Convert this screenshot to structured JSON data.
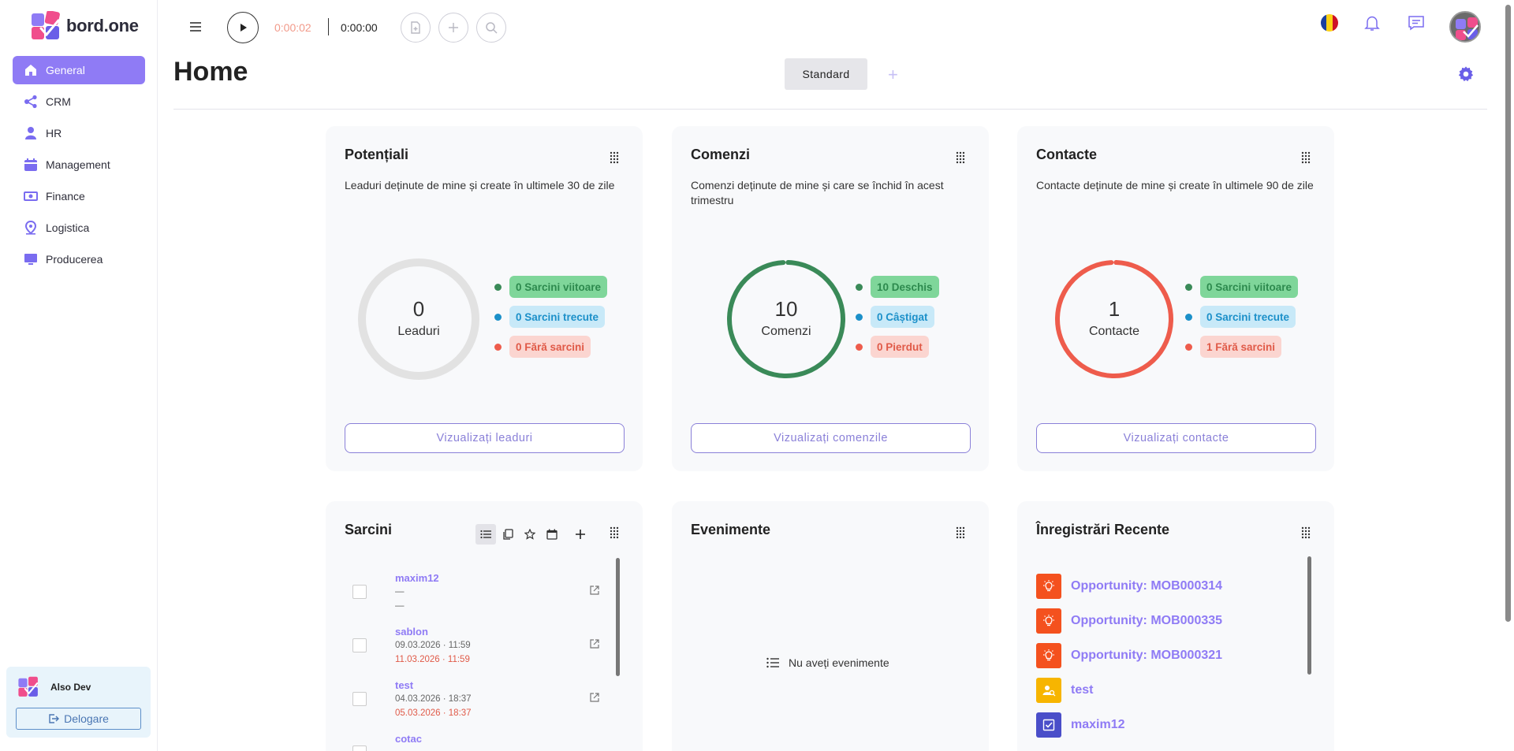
{
  "brand": {
    "name": "bord.one"
  },
  "sidebar": {
    "items": [
      {
        "label": "General",
        "icon": "home-icon",
        "active": true
      },
      {
        "label": "CRM",
        "icon": "share-icon"
      },
      {
        "label": "HR",
        "icon": "person-icon"
      },
      {
        "label": "Management",
        "icon": "calendar-icon"
      },
      {
        "label": "Finance",
        "icon": "money-icon"
      },
      {
        "label": "Logistica",
        "icon": "location-icon"
      },
      {
        "label": "Producerea",
        "icon": "monitor-icon"
      }
    ]
  },
  "user": {
    "name": "Also Dev",
    "logout_label": "Delogare"
  },
  "header": {
    "timer_elapsed": "0:00:02",
    "timer_total": "0:00:00",
    "language_flag": "romania-flag-icon"
  },
  "page": {
    "title": "Home",
    "tab_label": "Standard",
    "add_tab": "+"
  },
  "cards": {
    "potentiali": {
      "title": "Potențiali",
      "description": "Leaduri deținute de mine și create în ultimele 30 de zile",
      "count": "0",
      "count_label": "Leaduri",
      "ring_color": "#e2e2e2",
      "legend": [
        "0 Sarcini viitoare",
        "0 Sarcini trecute",
        "0 Fără sarcini"
      ],
      "button": "Vizualizați leaduri"
    },
    "comenzi": {
      "title": "Comenzi",
      "description": "Comenzi deținute de mine și care se închid în acest trimestru",
      "count": "10",
      "count_label": "Comenzi",
      "ring_color": "#3a8a58",
      "legend": [
        "10 Deschis",
        "0 Câștigat",
        "0 Pierdut"
      ],
      "button": "Vizualizați comenzile"
    },
    "contacte": {
      "title": "Contacte",
      "description": "Contacte deținute de mine și create în ultimele 90 de zile",
      "count": "1",
      "count_label": "Contacte",
      "ring_color": "#ee5c4c",
      "legend": [
        "0 Sarcini viitoare",
        "0 Sarcini trecute",
        "1 Fără sarcini"
      ],
      "button": "Vizualizați contacte"
    },
    "sarcini": {
      "title": "Sarcini",
      "tasks": [
        {
          "name": "maxim12",
          "line1": "—",
          "line2": "—"
        },
        {
          "name": "sablon",
          "line1": "09.03.2026 · 11:59",
          "line2": "11.03.2026 · 11:59"
        },
        {
          "name": "test",
          "line1": "04.03.2026 · 18:37",
          "line2": "05.03.2026 · 18:37"
        },
        {
          "name": "cotac",
          "line1": "",
          "line2": ""
        }
      ]
    },
    "evenimente": {
      "title": "Evenimente",
      "empty_text": "Nu aveți evenimente"
    },
    "inregistrari": {
      "title": "Înregistrări Recente",
      "records": [
        {
          "label": "Opportunity: MOB000314",
          "icon": "lightbulb-icon",
          "color": "#f4511e"
        },
        {
          "label": "Opportunity: MOB000335",
          "icon": "lightbulb-icon",
          "color": "#f4511e"
        },
        {
          "label": "Opportunity: MOB000321",
          "icon": "lightbulb-icon",
          "color": "#f4511e"
        },
        {
          "label": "test",
          "icon": "user-search-icon",
          "color": "#f7b500"
        },
        {
          "label": "maxim12",
          "icon": "checkbox-icon",
          "color": "#4a4ec9"
        }
      ]
    }
  },
  "colors": {
    "accent": "#8f7bf5",
    "green": "#3a8a58",
    "blue": "#1c90c9",
    "red": "#ee5c4c"
  }
}
